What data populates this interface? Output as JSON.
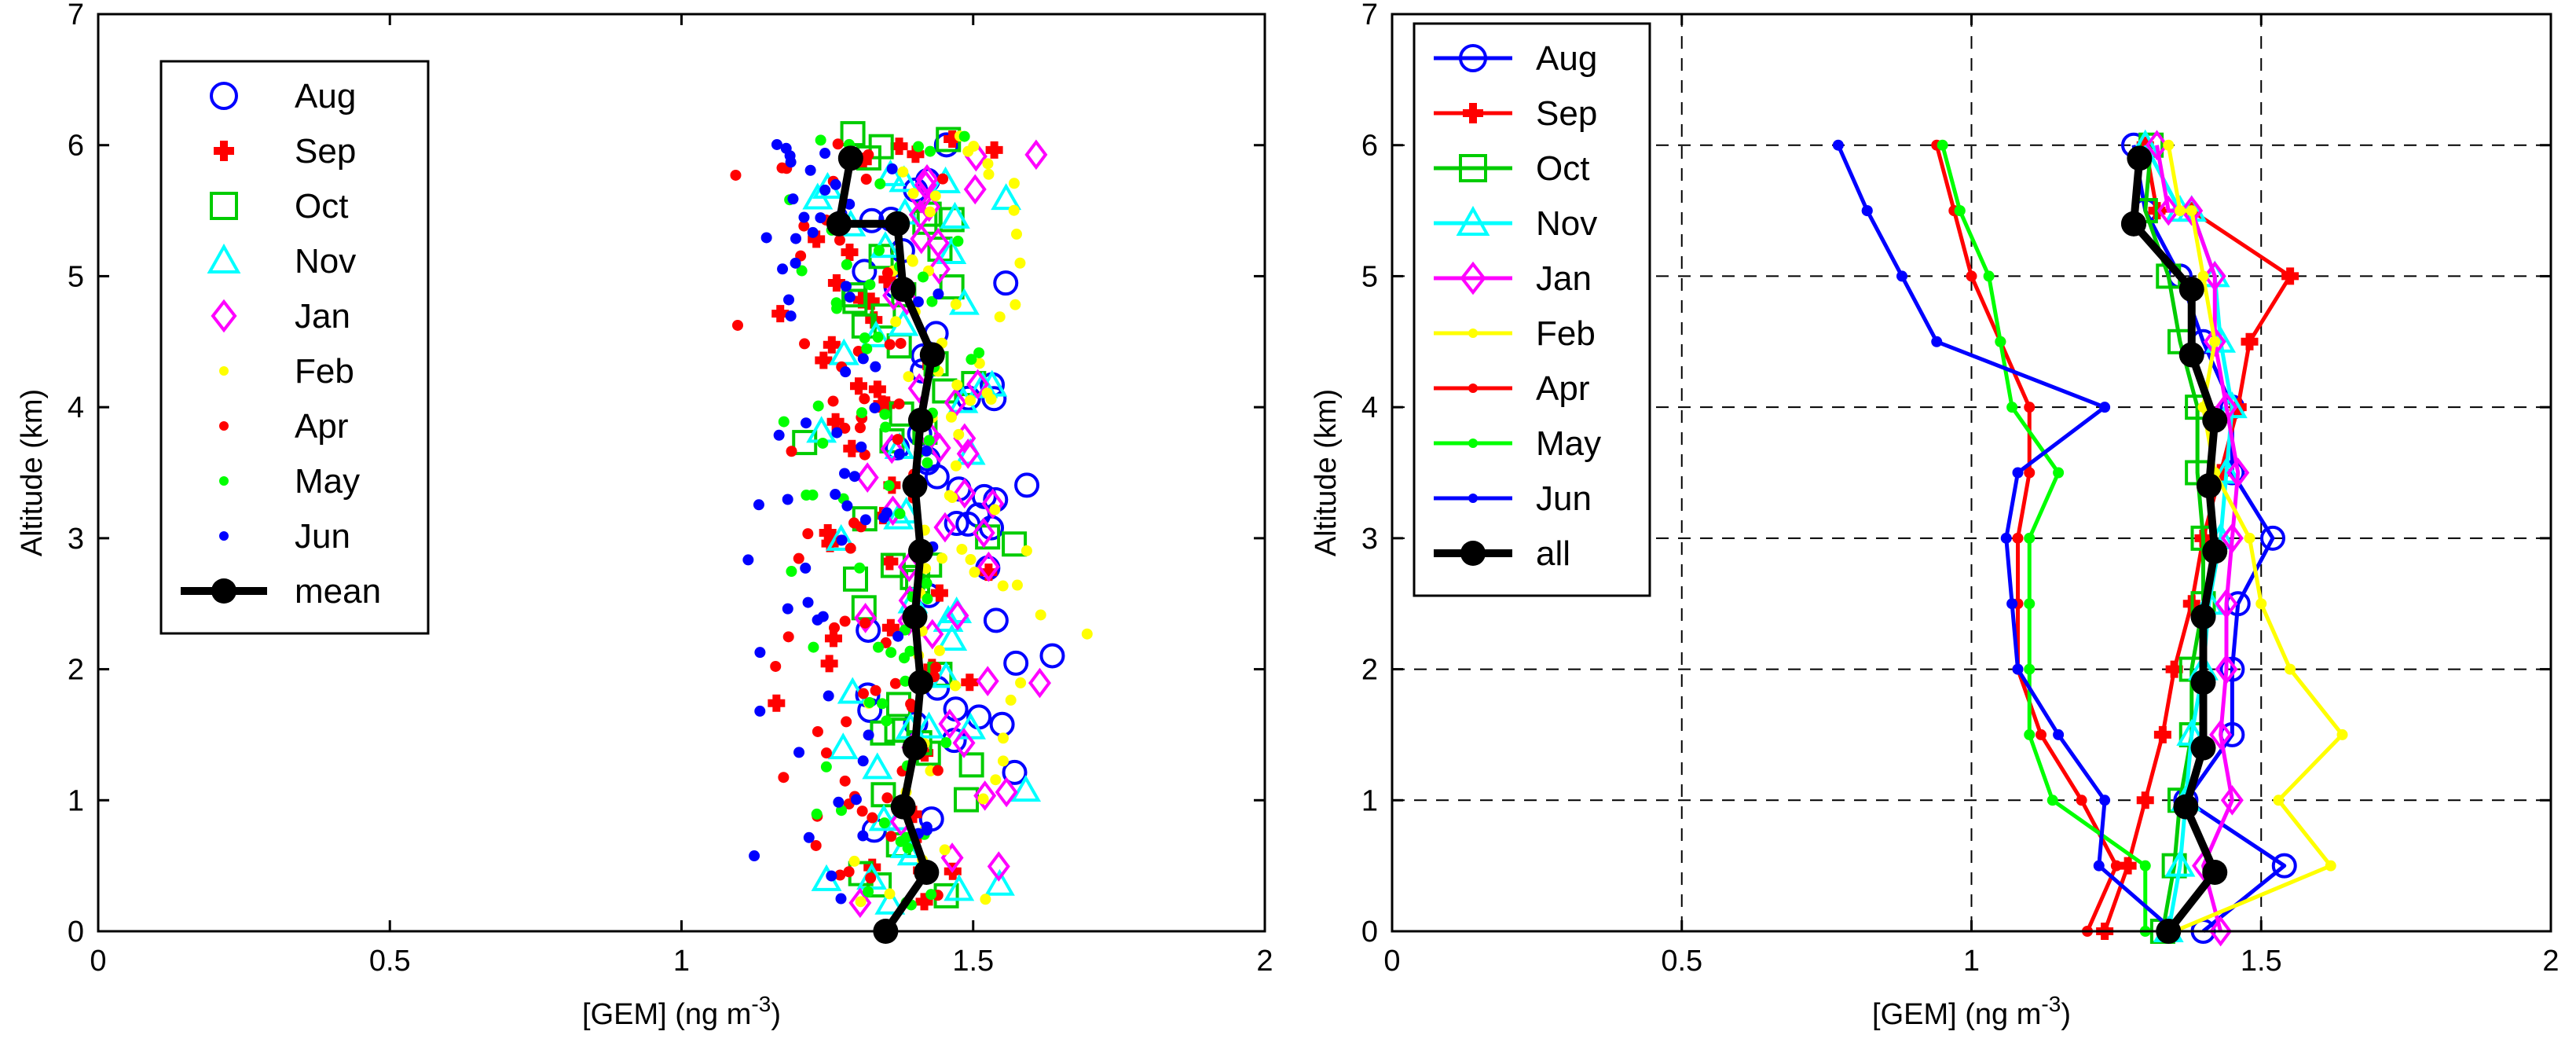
{
  "chart_data": [
    {
      "type": "scatter",
      "title": "",
      "xlabel": "[GEM] (ng m",
      "xlabel_sup": "-3",
      "xlabel_close": ")",
      "ylabel": "Altitude (km)",
      "xlim": [
        0,
        2
      ],
      "ylim": [
        0,
        7
      ],
      "xticks": [
        "0",
        "0.5",
        "1",
        "1.5",
        "2"
      ],
      "yticks": [
        "0",
        "1",
        "2",
        "3",
        "4",
        "5",
        "6",
        "7"
      ],
      "grid": false,
      "legend_position": "top-left",
      "series": [
        {
          "name": "Aug",
          "color": "#0000ff",
          "marker": "circle-open"
        },
        {
          "name": "Sep",
          "color": "#ff0000",
          "marker": "plus-filled"
        },
        {
          "name": "Oct",
          "color": "#00cc00",
          "marker": "square-open"
        },
        {
          "name": "Nov",
          "color": "#00ffff",
          "marker": "triangle-open"
        },
        {
          "name": "Jan",
          "color": "#ff00ff",
          "marker": "diamond-open"
        },
        {
          "name": "Feb",
          "color": "#ffff00",
          "marker": "dot"
        },
        {
          "name": "Apr",
          "color": "#ff0000",
          "marker": "dot"
        },
        {
          "name": "May",
          "color": "#00ff00",
          "marker": "dot"
        },
        {
          "name": "Jun",
          "color": "#0000ff",
          "marker": "dot"
        },
        {
          "name": "mean",
          "color": "#000000",
          "marker": "circle-filled-line",
          "x": [
            1.35,
            1.42,
            1.38,
            1.4,
            1.41,
            1.4,
            1.41,
            1.4,
            1.41,
            1.43,
            1.38,
            1.37,
            1.27,
            1.29
          ],
          "y": [
            0,
            0.45,
            0.95,
            1.4,
            1.9,
            2.4,
            2.9,
            3.4,
            3.9,
            4.4,
            4.9,
            5.4,
            5.4,
            5.9
          ]
        }
      ]
    },
    {
      "type": "line",
      "title": "",
      "xlabel": "[GEM] (ng m",
      "xlabel_sup": "-3",
      "xlabel_close": ")",
      "ylabel": "Altitude (km)",
      "xlim": [
        0,
        2
      ],
      "ylim": [
        0,
        7
      ],
      "xticks": [
        "0",
        "0.5",
        "1",
        "1.5",
        "2"
      ],
      "yticks": [
        "0",
        "1",
        "2",
        "3",
        "4",
        "5",
        "6",
        "7"
      ],
      "grid": true,
      "legend_position": "top-left",
      "series": [
        {
          "name": "Aug",
          "color": "#0000ff",
          "marker": "circle-open",
          "x": [
            1.4,
            1.54,
            1.37,
            1.45,
            1.45,
            1.46,
            1.52,
            1.45,
            1.45,
            1.4,
            1.36,
            1.3,
            1.3,
            1.28
          ],
          "y": [
            0,
            0.5,
            1.0,
            1.5,
            2.0,
            2.5,
            3.0,
            3.5,
            4.0,
            4.5,
            5.0,
            5.5,
            5.5,
            6.0
          ]
        },
        {
          "name": "Sep",
          "color": "#ff0000",
          "marker": "plus-filled",
          "x": [
            1.23,
            1.27,
            1.3,
            1.33,
            1.35,
            1.38,
            1.4,
            1.43,
            1.46,
            1.48,
            1.55,
            1.38,
            1.32,
            1.3
          ],
          "y": [
            0,
            0.5,
            1.0,
            1.5,
            2.0,
            2.5,
            3.0,
            3.5,
            4.0,
            4.5,
            5.0,
            5.5,
            5.5,
            6.0
          ]
        },
        {
          "name": "Oct",
          "color": "#00cc00",
          "marker": "square-open",
          "x": [
            1.33,
            1.35,
            1.36,
            1.38,
            1.38,
            1.4,
            1.4,
            1.39,
            1.39,
            1.36,
            1.34,
            1.3,
            1.3,
            1.31
          ],
          "y": [
            0,
            0.5,
            1.0,
            1.5,
            2.0,
            2.5,
            3.0,
            3.5,
            4.0,
            4.5,
            5.0,
            5.5,
            5.5,
            6.0
          ]
        },
        {
          "name": "Nov",
          "color": "#00ffff",
          "marker": "triangle-open",
          "x": [
            1.34,
            1.36,
            1.37,
            1.38,
            1.4,
            1.41,
            1.43,
            1.44,
            1.45,
            1.43,
            1.42,
            1.38,
            1.36,
            1.3
          ],
          "y": [
            0,
            0.5,
            1.0,
            1.5,
            2.0,
            2.5,
            3.0,
            3.5,
            4.0,
            4.5,
            5.0,
            5.5,
            5.5,
            6.0
          ]
        },
        {
          "name": "Jan",
          "color": "#ff00ff",
          "marker": "diamond-open",
          "x": [
            1.43,
            1.4,
            1.45,
            1.43,
            1.44,
            1.44,
            1.45,
            1.46,
            1.44,
            1.42,
            1.42,
            1.38,
            1.34,
            1.32
          ],
          "y": [
            0,
            0.5,
            1.0,
            1.5,
            2.0,
            2.5,
            3.0,
            3.5,
            4.0,
            4.5,
            5.0,
            5.5,
            5.5,
            6.0
          ]
        },
        {
          "name": "Feb",
          "color": "#ffff00",
          "marker": "dot",
          "x": [
            1.35,
            1.62,
            1.53,
            1.64,
            1.55,
            1.5,
            1.48,
            1.42,
            1.4,
            1.42,
            1.4,
            1.38,
            1.36,
            1.34
          ],
          "y": [
            0,
            0.5,
            1.0,
            1.5,
            2.0,
            2.5,
            3.0,
            3.5,
            4.0,
            4.5,
            5.0,
            5.5,
            5.5,
            6.0
          ]
        },
        {
          "name": "Apr",
          "color": "#ff0000",
          "marker": "dot",
          "x": [
            1.2,
            1.25,
            1.19,
            1.12,
            1.08,
            1.08,
            1.08,
            1.1,
            1.1,
            1.05,
            1.0,
            0.97,
            0.97,
            0.94
          ],
          "y": [
            0,
            0.5,
            1.0,
            1.5,
            2.0,
            2.5,
            3.0,
            3.5,
            4.0,
            4.5,
            5.0,
            5.5,
            5.5,
            6.0
          ]
        },
        {
          "name": "May",
          "color": "#00ff00",
          "marker": "dot",
          "x": [
            1.3,
            1.3,
            1.14,
            1.1,
            1.1,
            1.1,
            1.1,
            1.15,
            1.07,
            1.05,
            1.03,
            0.98,
            0.98,
            0.95
          ],
          "y": [
            0,
            0.5,
            1.0,
            1.5,
            2.0,
            2.5,
            3.0,
            3.5,
            4.0,
            4.5,
            5.0,
            5.5,
            5.5,
            6.0
          ]
        },
        {
          "name": "Jun",
          "color": "#0000ff",
          "marker": "dot",
          "x": [
            1.35,
            1.22,
            1.23,
            1.15,
            1.08,
            1.07,
            1.06,
            1.08,
            1.23,
            0.94,
            0.88,
            0.82,
            0.82,
            0.77
          ],
          "y": [
            0,
            0.5,
            1.0,
            1.5,
            2.0,
            2.5,
            3.0,
            3.5,
            4.0,
            4.5,
            5.0,
            5.5,
            5.5,
            6.0
          ]
        },
        {
          "name": "all",
          "color": "#000000",
          "marker": "circle-filled-line",
          "x": [
            1.34,
            1.42,
            1.37,
            1.4,
            1.4,
            1.4,
            1.42,
            1.41,
            1.42,
            1.38,
            1.38,
            1.28,
            1.28,
            1.29
          ],
          "y": [
            0,
            0.45,
            0.95,
            1.4,
            1.9,
            2.4,
            2.9,
            3.4,
            3.9,
            4.4,
            4.9,
            5.4,
            5.4,
            5.9
          ]
        }
      ]
    }
  ]
}
